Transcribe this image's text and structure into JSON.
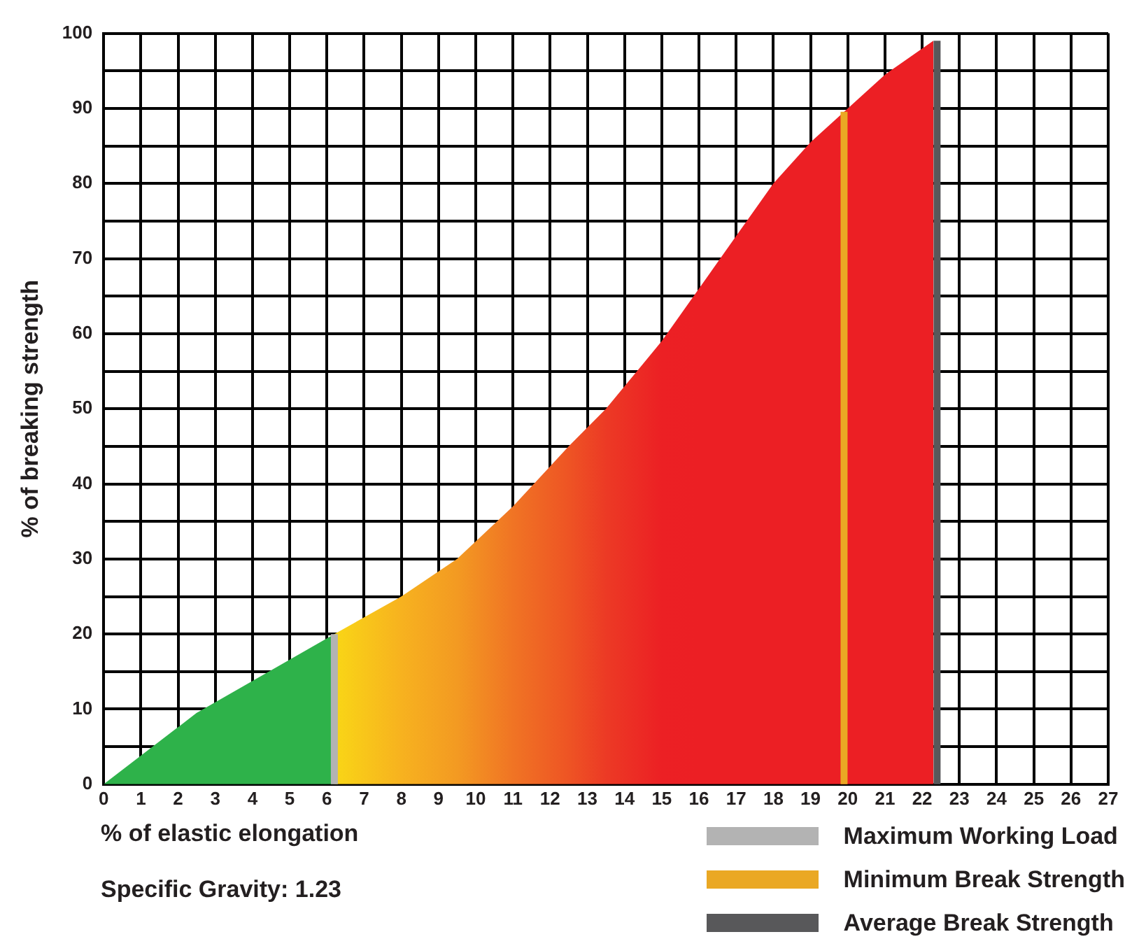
{
  "chart_data": {
    "type": "area",
    "xlabel": "% of elastic elongation",
    "ylabel": "% of breaking strength",
    "annotations": [
      "Specific Gravity: 1.23"
    ],
    "x": [
      0,
      2.5,
      6.2,
      6.2,
      8,
      9.5,
      11,
      12.5,
      13.5,
      15,
      16,
      17,
      18,
      19,
      20,
      21,
      22.3
    ],
    "series": [
      {
        "values": [
          0,
          9.5,
          20,
          20,
          25,
          30,
          37,
          45,
          50,
          59,
          66,
          73,
          80,
          85.5,
          90,
          94.5,
          99
        ],
        "colors": [
          "#2eb24a",
          "#2eb24a",
          "#2eb24a",
          "#f9d616",
          "#f7b21f",
          "#f39a22",
          "#f07424",
          "#ee5424",
          "#ec3a25",
          "#ec2024",
          "#ec1f24",
          "#ec1f24",
          "#ec1f24",
          "#ec1f24",
          "#ec1f24",
          "#ec1f24",
          "#ec1f24"
        ]
      }
    ],
    "xlim": [
      0,
      27
    ],
    "xticks": [
      0,
      1,
      2,
      3,
      4,
      5,
      6,
      7,
      8,
      9,
      10,
      11,
      12,
      13,
      14,
      15,
      16,
      17,
      18,
      19,
      20,
      21,
      22,
      23,
      24,
      25,
      26,
      27
    ],
    "ylim": [
      0,
      100
    ],
    "yticks": [
      0,
      {
        "value": 5,
        "label": null
      },
      10,
      {
        "value": 15,
        "label": null
      },
      20,
      {
        "value": 25,
        "label": null
      },
      30,
      {
        "value": 35,
        "label": null
      },
      40,
      {
        "value": 45,
        "label": null
      },
      50,
      {
        "value": 55,
        "label": null
      },
      60,
      {
        "value": 65,
        "label": null
      },
      70,
      {
        "value": 75,
        "label": null
      },
      80,
      {
        "value": 85,
        "label": null
      },
      90,
      {
        "value": 95,
        "label": null
      },
      100
    ],
    "grid": true,
    "legend": "bottom right",
    "ref_lines": [
      {
        "axis": "x",
        "value": 6.2,
        "label": "Maximum Working Load",
        "color": "#b3b3b3"
      },
      {
        "axis": "x",
        "value": 19.9,
        "label": "Minimum Break Strength",
        "color": "#eaa824"
      },
      {
        "axis": "x",
        "value": 22.4,
        "label": "Average Break Strength",
        "color": "#58585a"
      }
    ]
  }
}
